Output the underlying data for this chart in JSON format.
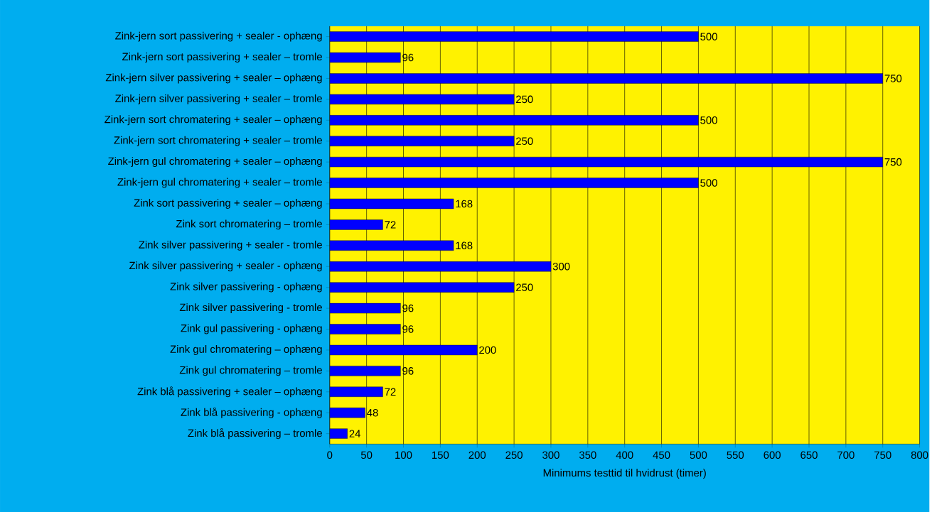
{
  "chart_data": {
    "type": "bar",
    "orientation": "horizontal",
    "xlabel": "Minimums testtid til hvidrust (timer)",
    "categories": [
      "Zink-jern sort passivering + sealer - ophæng",
      "Zink-jern sort passivering + sealer – tromle",
      "Zink-jern silver passivering + sealer – ophæng",
      "Zink-jern silver passivering + sealer – tromle",
      "Zink-jern sort chromatering + sealer – ophæng",
      "Zink-jern sort chromatering + sealer – tromle",
      "Zink-jern gul chromatering + sealer – ophæng",
      "Zink-jern gul chromatering + sealer – tromle",
      "Zink sort passivering + sealer – ophæng",
      "Zink sort chromatering – tromle",
      "Zink silver passivering + sealer - tromle",
      "Zink silver passivering + sealer - ophæng",
      "Zink silver passivering - ophæng",
      "Zink silver passivering - tromle",
      "Zink gul passivering - ophæng",
      "Zink gul chromatering – ophæng",
      "Zink gul chromatering – tromle",
      "Zink blå passivering + sealer – ophæng",
      "Zink blå passivering - ophæng",
      "Zink blå passivering – tromle"
    ],
    "values": [
      500,
      96,
      750,
      250,
      500,
      250,
      750,
      500,
      168,
      72,
      168,
      300,
      250,
      96,
      96,
      200,
      96,
      72,
      48,
      24
    ],
    "color": "#0000ff",
    "xlim": [
      0,
      800
    ],
    "xticks": [
      0,
      50,
      100,
      150,
      200,
      250,
      300,
      350,
      400,
      450,
      500,
      550,
      600,
      650,
      700,
      750,
      800
    ],
    "grid": "x",
    "data_labels": true
  }
}
